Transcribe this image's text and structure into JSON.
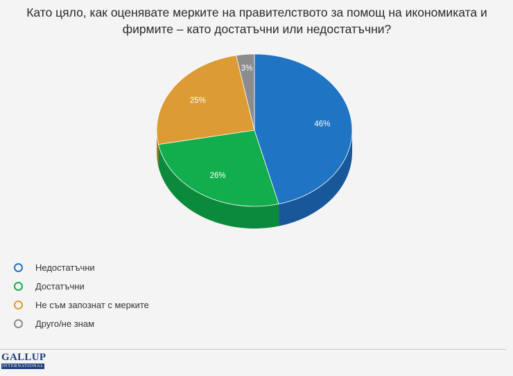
{
  "title": "Като цяло, как оценявате мерките на правителството за помощ на икономиката и фирмите – като достатъчни или недостатъчни?",
  "chart_data": {
    "type": "pie",
    "title": "Като цяло, как оценявате мерките на правителството за помощ на икономиката и фирмите – като достатъчни или недостатъчни?",
    "legend_position": "bottom-left",
    "slices": [
      {
        "label": "Недостатъчни",
        "value": 46,
        "value_label": "46%",
        "color": "#1f74c4",
        "side_color": "#18579a"
      },
      {
        "label": "Достатъчни",
        "value": 26,
        "value_label": "26%",
        "color": "#12ae4d",
        "side_color": "#0c8a3b"
      },
      {
        "label": "Не съм запознат с мерките",
        "value": 25,
        "value_label": "25%",
        "color": "#dd9b33",
        "side_color": "#b37a22"
      },
      {
        "label": "Друго/не знам",
        "value": 3,
        "value_label": "3%",
        "color": "#8c8c8c",
        "side_color": "#6b6b6b"
      }
    ]
  },
  "logo": {
    "main": "GALLUP",
    "sub": "INTERNATIONAL"
  }
}
